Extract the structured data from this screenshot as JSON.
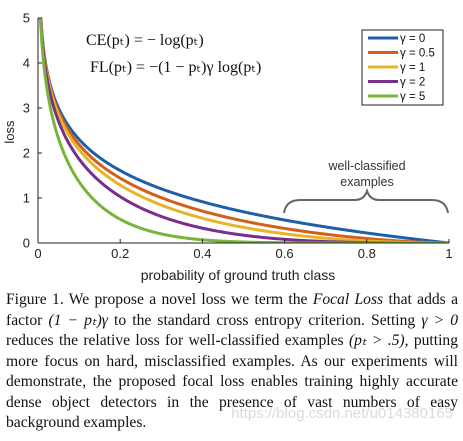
{
  "chart_data": {
    "type": "line",
    "xlabel": "probability of ground truth class",
    "ylabel": "loss",
    "xlim": [
      0,
      1
    ],
    "ylim": [
      0,
      5
    ],
    "xticks": [
      "0",
      "0.2",
      "0.4",
      "0.6",
      "0.8",
      "1"
    ],
    "yticks": [
      "0",
      "1",
      "2",
      "3",
      "4",
      "5"
    ],
    "equations": [
      "CE(pₜ) = − log(pₜ)",
      "FL(pₜ) = −(1 − pₜ)γ log(pₜ)"
    ],
    "legend_position": "top-right",
    "series": [
      {
        "name": "γ = 0",
        "gamma": 0,
        "color": "#1f5fa8"
      },
      {
        "name": "γ = 0.5",
        "gamma": 0.5,
        "color": "#d2601a"
      },
      {
        "name": "γ = 1",
        "gamma": 1,
        "color": "#e8b52a"
      },
      {
        "name": "γ = 2",
        "gamma": 2,
        "color": "#7a2e8c"
      },
      {
        "name": "γ = 5",
        "gamma": 5,
        "color": "#78b33a"
      }
    ],
    "annotation": {
      "line1": "well-classified",
      "line2": "examples",
      "x_range": [
        0.6,
        1.0
      ]
    }
  },
  "caption": {
    "p1": "Figure 1. We propose a novel loss we term the ",
    "focal": "Focal Loss",
    "p2": " that adds a factor ",
    "factor": "(1 − pₜ)γ",
    "p3": " to the standard cross entropy criterion. Setting ",
    "gamma_cond": "γ > 0",
    "p4": " reduces the relative loss for well-classified examples ",
    "pt_cond": "(pₜ > .5)",
    "p5": ", putting more focus on hard, misclassified examples. As our experiments will demonstrate, the proposed focal loss enables training highly accurate dense object detectors in the presence of vast numbers of easy background examples."
  },
  "watermark": "https://blog.csdn.net/u014380165"
}
